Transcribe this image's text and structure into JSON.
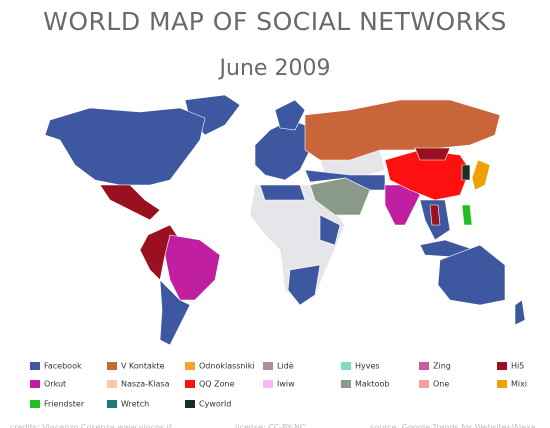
{
  "title": "WORLD MAP OF SOCIAL NETWORKS",
  "subtitle": "June 2009",
  "legend": [
    {
      "name": "Facebook",
      "color": "#3d57a0"
    },
    {
      "name": "V Kontakte",
      "color": "#c8663a"
    },
    {
      "name": "Odnoklassniki",
      "color": "#f5a623"
    },
    {
      "name": "Lidè",
      "color": "#b08aa0"
    },
    {
      "name": "Hyves",
      "color": "#7fdcc0"
    },
    {
      "name": "Zing",
      "color": "#c060a0"
    },
    {
      "name": "Hi5",
      "color": "#9b1020"
    },
    {
      "name": "Orkut",
      "color": "#c020a0"
    },
    {
      "name": "Nasza-Klasa",
      "color": "#f5c8a0"
    },
    {
      "name": "QQ Zone",
      "color": "#ff1010"
    },
    {
      "name": "Iwiw",
      "color": "#f8b8f0"
    },
    {
      "name": "Maktoob",
      "color": "#8a9a88"
    },
    {
      "name": "One",
      "color": "#f8a0a0"
    },
    {
      "name": "Mixi",
      "color": "#f0a000"
    },
    {
      "name": "Friendster",
      "color": "#20c020"
    },
    {
      "name": "Wretch",
      "color": "#1a7a70"
    },
    {
      "name": "Cyworld",
      "color": "#1a3020"
    }
  ],
  "footer": [
    "credits: Vincenzo Cosenza www.vincos.it",
    "license: CC-BY-NC",
    "source: Google Trends for Websites/Alexa"
  ]
}
